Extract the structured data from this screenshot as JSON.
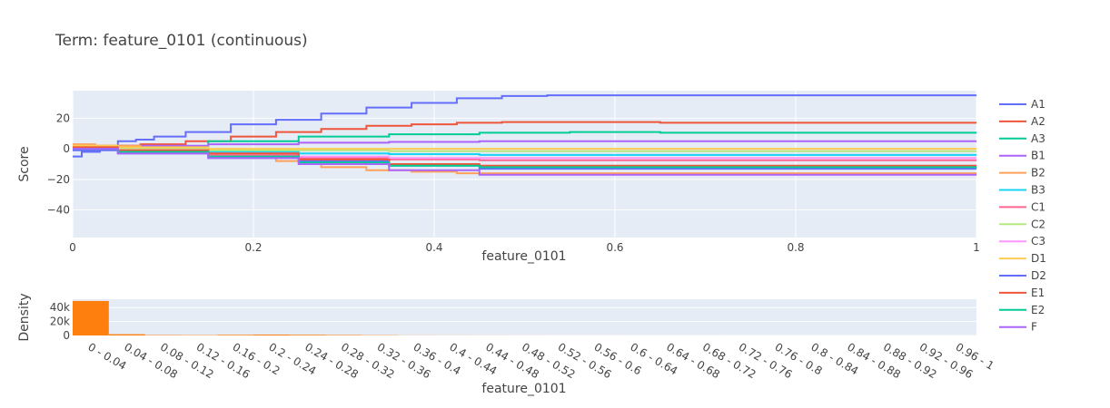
{
  "chart_data": [
    {
      "type": "line",
      "title": "Term: feature_0101 (continuous)",
      "xlabel": "feature_0101",
      "ylabel": "Score",
      "xlim": [
        0,
        1
      ],
      "ylim": [
        -58,
        38
      ],
      "x_ticks": [
        0,
        0.2,
        0.4,
        0.6,
        0.8,
        1
      ],
      "x_tick_labels": [
        "0",
        "0.2",
        "0.4",
        "0.6",
        "0.8",
        "1"
      ],
      "y_ticks": [
        -40,
        -20,
        0,
        20
      ],
      "y_tick_labels": [
        "−40",
        "−20",
        "0",
        "20"
      ],
      "grid": true,
      "legend_position": "right",
      "series": [
        {
          "name": "A1",
          "color": "#636efa",
          "x": [
            0,
            0.02,
            0.04,
            0.06,
            0.08,
            0.1,
            0.15,
            0.2,
            0.25,
            0.3,
            0.35,
            0.4,
            0.45,
            0.5,
            0.55,
            0.6,
            0.7,
            0.8,
            0.9,
            1
          ],
          "y": [
            -5,
            -2,
            1,
            5,
            6,
            8,
            11,
            16,
            19,
            23,
            27,
            30,
            33,
            34.5,
            35,
            35,
            35,
            35,
            35,
            35
          ]
        },
        {
          "name": "A2",
          "color": "#ef553b",
          "x": [
            0,
            0.05,
            0.1,
            0.15,
            0.2,
            0.25,
            0.3,
            0.35,
            0.4,
            0.45,
            0.5,
            0.55,
            0.6,
            0.7,
            0.8,
            0.9,
            1
          ],
          "y": [
            1,
            2,
            3,
            5,
            8,
            11,
            13,
            15,
            16,
            17,
            17.5,
            17.5,
            17.5,
            17,
            17,
            17,
            17
          ]
        },
        {
          "name": "A3",
          "color": "#00cc96",
          "x": [
            0,
            0.1,
            0.2,
            0.3,
            0.4,
            0.5,
            0.6,
            0.7,
            1
          ],
          "y": [
            0,
            1,
            5,
            8,
            9.5,
            10.5,
            11,
            10.5,
            10.5
          ]
        },
        {
          "name": "B1",
          "color": "#ab63fa",
          "x": [
            0,
            0.1,
            0.2,
            0.3,
            0.4,
            0.5,
            0.6,
            0.7,
            1
          ],
          "y": [
            1,
            2,
            3,
            4,
            4.5,
            5,
            5,
            5,
            5
          ]
        },
        {
          "name": "B2",
          "color": "#ffa15a",
          "x": [
            0,
            0.05,
            0.1,
            0.15,
            0.2,
            0.25,
            0.3,
            0.35,
            0.4,
            0.45,
            0.5,
            0.55,
            0.6,
            1
          ],
          "y": [
            3,
            2,
            0,
            -2,
            -5,
            -8,
            -12,
            -14,
            -15,
            -16,
            -16,
            -16,
            -16,
            -16
          ]
        },
        {
          "name": "B3",
          "color": "#19d3f3",
          "x": [
            0,
            0.1,
            0.2,
            0.3,
            0.4,
            0.5,
            0.6,
            1
          ],
          "y": [
            0,
            -1,
            -2,
            -3,
            -3.5,
            -4,
            -4,
            -4
          ]
        },
        {
          "name": "C1",
          "color": "#ff6692",
          "x": [
            0,
            0.1,
            0.2,
            0.3,
            0.4,
            0.5,
            0.6,
            1
          ],
          "y": [
            0,
            -2,
            -4,
            -6,
            -7,
            -7.5,
            -7.5,
            -7.5
          ]
        },
        {
          "name": "C2",
          "color": "#b6e880",
          "x": [
            0,
            0.1,
            0.2,
            0.3,
            0.4,
            0.5,
            0.6,
            1
          ],
          "y": [
            0,
            0,
            -1,
            -1,
            -1.5,
            -1.5,
            -1.5,
            -1.5
          ]
        },
        {
          "name": "C3",
          "color": "#ff97ff",
          "x": [
            0,
            0.1,
            0.2,
            0.3,
            0.4,
            0.5,
            0.6,
            1
          ],
          "y": [
            0,
            -1,
            -3,
            -5,
            -6,
            -6,
            -6,
            -6
          ]
        },
        {
          "name": "D1",
          "color": "#fecb52",
          "x": [
            0,
            0.1,
            0.2,
            0.3,
            0.4,
            0.5,
            0.6,
            1
          ],
          "y": [
            2,
            1,
            0,
            0,
            0,
            0,
            0,
            0
          ]
        },
        {
          "name": "D2",
          "color": "#636efa",
          "x": [
            0,
            0.1,
            0.2,
            0.3,
            0.4,
            0.5,
            0.6,
            1
          ],
          "y": [
            -1,
            -3,
            -6,
            -8,
            -11,
            -13,
            -13,
            -13
          ]
        },
        {
          "name": "E1",
          "color": "#ef553b",
          "x": [
            0,
            0.1,
            0.2,
            0.3,
            0.4,
            0.5,
            0.6,
            1
          ],
          "y": [
            1,
            -1,
            -3,
            -7,
            -10,
            -11,
            -11,
            -11
          ]
        },
        {
          "name": "E2",
          "color": "#00cc96",
          "x": [
            0,
            0.1,
            0.2,
            0.3,
            0.4,
            0.5,
            0.6,
            1
          ],
          "y": [
            0,
            -2,
            -5,
            -9,
            -11,
            -12,
            -12,
            -12
          ]
        },
        {
          "name": "F",
          "color": "#ab63fa",
          "x": [
            0,
            0.1,
            0.2,
            0.3,
            0.4,
            0.5,
            0.6,
            1
          ],
          "y": [
            0,
            -3,
            -6,
            -10,
            -14,
            -17,
            -17,
            -17
          ]
        }
      ]
    },
    {
      "type": "bar",
      "xlabel": "feature_0101",
      "ylabel": "Density",
      "ylim": [
        0,
        52000
      ],
      "y_ticks": [
        0,
        20000,
        40000
      ],
      "y_tick_labels": [
        "0",
        "20k",
        "40k"
      ],
      "bar_color": "#ff7f0e",
      "categories": [
        "0 - 0.04",
        "0.04 - 0.08",
        "0.08 - 0.12",
        "0.12 - 0.16",
        "0.16 - 0.2",
        "0.2 - 0.24",
        "0.24 - 0.28",
        "0.28 - 0.32",
        "0.32 - 0.36",
        "0.36 - 0.4",
        "0.4 - 0.44",
        "0.44 - 0.48",
        "0.48 - 0.52",
        "0.52 - 0.56",
        "0.56 - 0.6",
        "0.6 - 0.64",
        "0.64 - 0.68",
        "0.68 - 0.72",
        "0.72 - 0.76",
        "0.76 - 0.8",
        "0.8 - 0.84",
        "0.84 - 0.88",
        "0.88 - 0.92",
        "0.92 - 0.96",
        "0.96 - 1"
      ],
      "values": [
        49500,
        1800,
        600,
        500,
        900,
        1300,
        1000,
        700,
        400,
        200,
        150,
        100,
        80,
        60,
        50,
        40,
        30,
        30,
        20,
        20,
        20,
        10,
        10,
        10,
        10
      ]
    }
  ]
}
